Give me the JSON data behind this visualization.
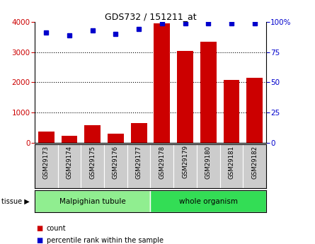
{
  "title": "GDS732 / 151211_at",
  "samples": [
    "GSM29173",
    "GSM29174",
    "GSM29175",
    "GSM29176",
    "GSM29177",
    "GSM29178",
    "GSM29179",
    "GSM29180",
    "GSM29181",
    "GSM29182"
  ],
  "counts": [
    380,
    220,
    580,
    300,
    650,
    3950,
    3050,
    3350,
    2080,
    2150
  ],
  "percentiles": [
    91,
    89,
    93,
    90,
    94,
    99,
    99,
    99,
    99,
    99
  ],
  "groups": [
    {
      "label": "Malpighian tubule",
      "start": 0,
      "end": 5,
      "color": "#90EE90"
    },
    {
      "label": "whole organism",
      "start": 5,
      "end": 10,
      "color": "#33DD55"
    }
  ],
  "bar_color": "#CC0000",
  "dot_color": "#0000CC",
  "left_ylim": [
    0,
    4000
  ],
  "right_ylim": [
    0,
    100
  ],
  "left_yticks": [
    0,
    1000,
    2000,
    3000,
    4000
  ],
  "right_yticks": [
    0,
    25,
    50,
    75,
    100
  ],
  "right_yticklabels": [
    "0",
    "25",
    "50",
    "75",
    "100%"
  ],
  "grid_color": "black",
  "tissue_label": "tissue",
  "legend_count_label": "count",
  "legend_percentile_label": "percentile rank within the sample",
  "tick_label_color_left": "#CC0000",
  "tick_label_color_right": "#0000CC",
  "background_color": "#ffffff",
  "label_bg_color": "#CCCCCC"
}
